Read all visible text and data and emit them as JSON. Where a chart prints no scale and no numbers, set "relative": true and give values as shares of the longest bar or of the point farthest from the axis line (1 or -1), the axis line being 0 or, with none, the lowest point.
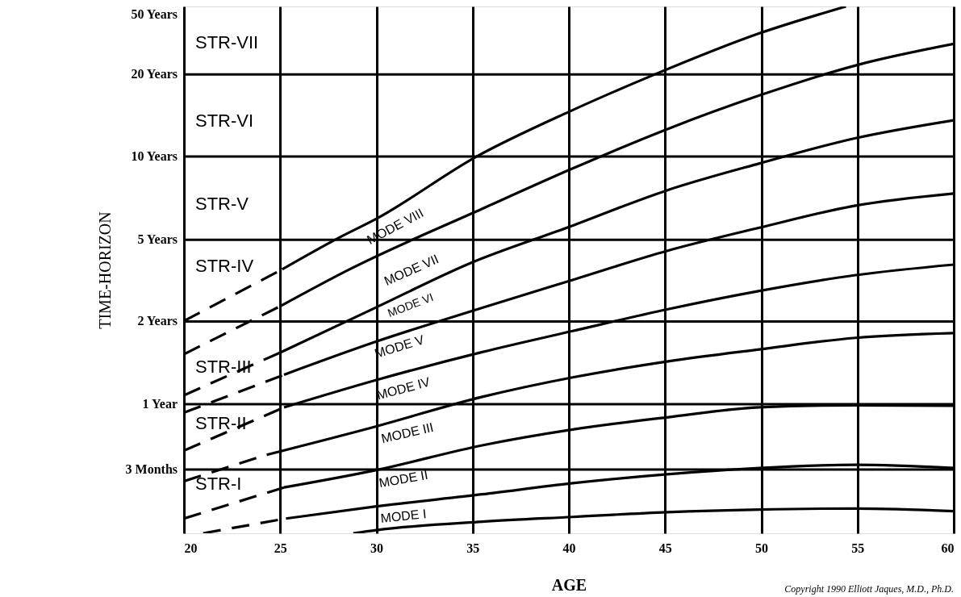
{
  "chart_data": {
    "type": "line",
    "xlabel": "AGE",
    "ylabel": "TIME-HORIZON",
    "relative": true,
    "xlim": [
      20,
      60
    ],
    "xticks": [
      20,
      25,
      30,
      35,
      40,
      45,
      50,
      55,
      60
    ],
    "grid": "x",
    "ref_lines": [
      {
        "axis": "y",
        "value": 0.121,
        "label": "3 Months",
        "color": "#000000",
        "line_style": "solid"
      },
      {
        "axis": "y",
        "value": 0.245,
        "label": "1 Year",
        "color": "#000000",
        "line_style": "solid"
      },
      {
        "axis": "y",
        "value": 0.402,
        "label": "2 Years",
        "color": "#000000",
        "line_style": "solid"
      },
      {
        "axis": "y",
        "value": 0.557,
        "label": "5 Years",
        "color": "#000000",
        "line_style": "solid"
      },
      {
        "axis": "y",
        "value": 0.715,
        "label": "10 Years",
        "color": "#000000",
        "line_style": "solid"
      },
      {
        "axis": "y",
        "value": 0.871,
        "label": "20 Years",
        "color": "#000000",
        "line_style": "solid"
      }
    ],
    "series": [
      {
        "color": "#000000",
        "line_style": "dashed",
        "x": [
          20,
          25.1
        ],
        "values": [
          0.403,
          0.501
        ]
      },
      {
        "color": "#000000",
        "line_style": "solid",
        "x": [
          25.1,
          28,
          30,
          35.2,
          40,
          44.4,
          49.9,
          54.4
        ],
        "values": [
          0.501,
          0.56,
          0.597,
          0.715,
          0.8,
          0.87,
          0.949,
          1
        ]
      },
      {
        "color": "#000000",
        "line_style": "dashed",
        "x": [
          20,
          25
        ],
        "values": [
          0.34,
          0.431
        ]
      },
      {
        "color": "#000000",
        "line_style": "solid",
        "x": [
          25,
          28.6,
          35.5,
          40.1,
          45.1,
          49.9,
          55.1,
          60
        ],
        "values": [
          0.431,
          0.501,
          0.616,
          0.691,
          0.767,
          0.831,
          0.89,
          0.929
        ]
      },
      {
        "color": "#000000",
        "line_style": "dashed",
        "x": [
          20,
          25
        ],
        "values": [
          0.262,
          0.343
        ]
      },
      {
        "color": "#000000",
        "line_style": "solid",
        "x": [
          25,
          30,
          34.9,
          39.9,
          45.1,
          49.9,
          54.9,
          60
        ],
        "values": [
          0.343,
          0.429,
          0.513,
          0.58,
          0.651,
          0.702,
          0.75,
          0.784
        ]
      },
      {
        "color": "#000000",
        "line_style": "dashed",
        "x": [
          20,
          25.2
        ],
        "values": [
          0.229,
          0.301
        ]
      },
      {
        "color": "#000000",
        "line_style": "solid",
        "x": [
          25.2,
          30,
          35.5,
          40.2,
          45.1,
          49.9,
          54.9,
          60
        ],
        "values": [
          0.301,
          0.364,
          0.428,
          0.481,
          0.536,
          0.58,
          0.622,
          0.645
        ]
      },
      {
        "color": "#000000",
        "line_style": "dashed",
        "x": [
          20,
          25.2
        ],
        "values": [
          0.157,
          0.239
        ]
      },
      {
        "color": "#000000",
        "line_style": "solid",
        "x": [
          25.2,
          30,
          35.5,
          40.2,
          45.1,
          49.9,
          54.9,
          60
        ],
        "values": [
          0.239,
          0.291,
          0.344,
          0.384,
          0.425,
          0.46,
          0.49,
          0.51
        ]
      },
      {
        "color": "#000000",
        "line_style": "dashed",
        "x": [
          20,
          24.3
        ],
        "values": [
          0.099,
          0.149
        ]
      },
      {
        "color": "#000000",
        "line_style": "solid",
        "x": [
          24.3,
          30,
          35.5,
          40.2,
          45.1,
          49.9,
          54.9,
          60
        ],
        "values": [
          0.149,
          0.203,
          0.259,
          0.296,
          0.326,
          0.349,
          0.371,
          0.38
        ]
      },
      {
        "color": "#000000",
        "line_style": "dashed",
        "x": [
          20,
          25.2
        ],
        "values": [
          0.028,
          0.087
        ]
      },
      {
        "color": "#000000",
        "line_style": "solid",
        "x": [
          25.2,
          30,
          35.5,
          40.2,
          45.1,
          49.9,
          54.9,
          60
        ],
        "values": [
          0.087,
          0.12,
          0.167,
          0.197,
          0.22,
          0.239,
          0.243,
          0.242
        ]
      },
      {
        "color": "#000000",
        "line_style": "dashed",
        "x": [
          21,
          25.3
        ],
        "values": [
          0,
          0.028
        ]
      },
      {
        "color": "#000000",
        "line_style": "solid",
        "x": [
          25.3,
          30,
          35.5,
          40.2,
          45.1,
          49.9,
          54.9,
          60
        ],
        "values": [
          0.028,
          0.051,
          0.074,
          0.095,
          0.112,
          0.124,
          0.13,
          0.124
        ]
      },
      {
        "color": "#000000",
        "line_style": "solid",
        "x": [
          28.8,
          30,
          35.5,
          40.2,
          45.1,
          49.9,
          54.9,
          60
        ],
        "values": [
          0,
          0.006,
          0.022,
          0.031,
          0.04,
          0.045,
          0.047,
          0.042
        ]
      }
    ],
    "annotations": [
      "STR-VII",
      "STR-VI",
      "STR-V",
      "STR-IV",
      "STR-III",
      "STR-II",
      "STR-I",
      "MODE VIII",
      "MODE VII",
      "MODE VI",
      "MODE V",
      "MODE IV",
      "MODE III",
      "MODE II",
      "MODE I",
      "Copyright 1990 Elliott Jaques, M.D., Ph.D.",
      "50 Years"
    ]
  }
}
